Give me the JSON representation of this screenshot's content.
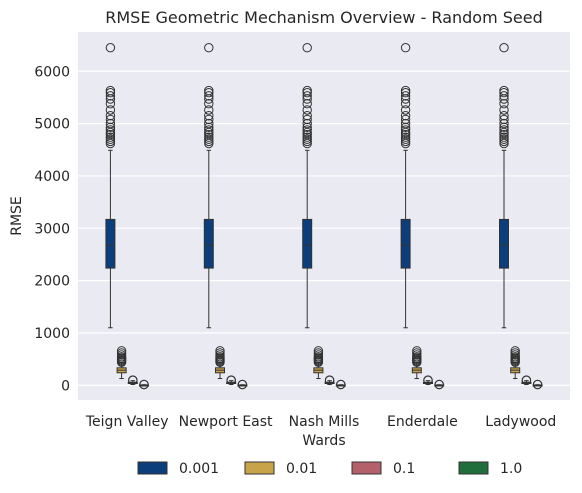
{
  "chart_data": {
    "type": "box",
    "title": "RMSE Geometric Mechanism Overview  - Random Seed",
    "xlabel": "Wards",
    "ylabel": "RMSE",
    "categories": [
      "Teign Valley",
      "Newport East",
      "Nash Mills",
      "Enderdale",
      "Ladywood"
    ],
    "ylim": [
      -280,
      6750
    ],
    "yticks": [
      0,
      1000,
      2000,
      3000,
      4000,
      5000,
      6000
    ],
    "grid": true,
    "legend_position": "bottom",
    "series": [
      {
        "name": "0.001",
        "color": "#0b3e7a",
        "stats": {
          "whisker_low": 1100,
          "q1": 2240,
          "median": 2680,
          "q3": 3170,
          "whisker_high": 4490
        },
        "outliers": [
          4620,
          4660,
          4700,
          4740,
          4790,
          4830,
          4880,
          4930,
          5000,
          5080,
          5150,
          5260,
          5380,
          5470,
          5530,
          5590,
          5630,
          6450
        ]
      },
      {
        "name": "0.01",
        "color": "#c9a34a",
        "stats": {
          "whisker_low": 130,
          "q1": 240,
          "median": 290,
          "q3": 335,
          "whisker_high": 430
        },
        "outliers": [
          440,
          460,
          480,
          500,
          520,
          545,
          580,
          620,
          660
        ]
      },
      {
        "name": "0.1",
        "color": "#b4606a",
        "stats": {
          "whisker_low": 20,
          "q1": 35,
          "median": 45,
          "q3": 60,
          "whisker_high": 90
        },
        "outliers": [
          95,
          100
        ]
      },
      {
        "name": "1.0",
        "color": "#1f6e3c",
        "stats": {
          "whisker_low": 0,
          "q1": 2,
          "median": 4,
          "q3": 7,
          "whisker_high": 12
        },
        "outliers": [
          14,
          18
        ]
      }
    ]
  }
}
